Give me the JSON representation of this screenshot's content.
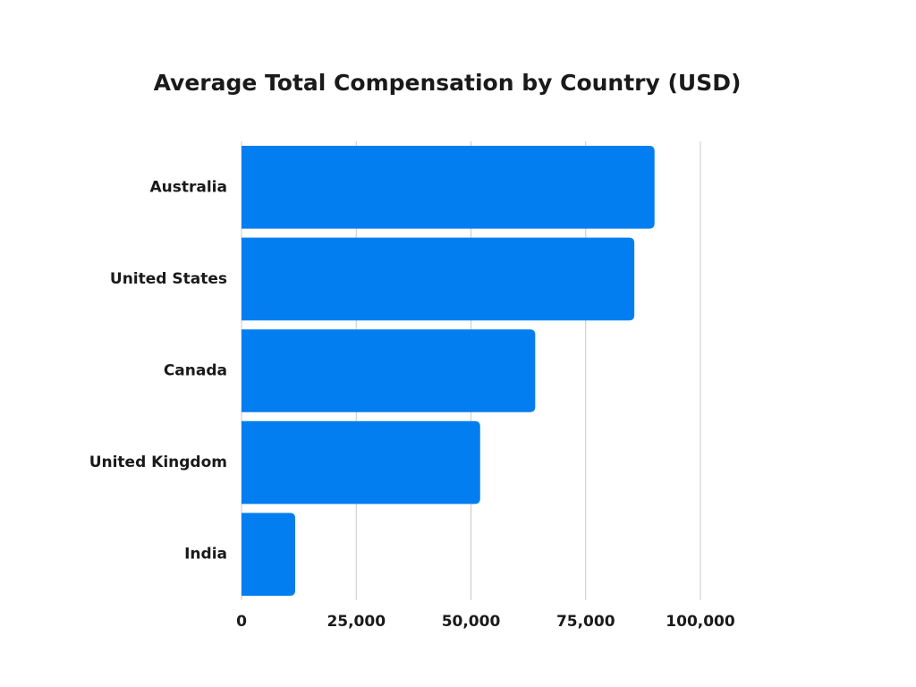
{
  "chart_data": {
    "type": "bar",
    "orientation": "horizontal",
    "title": "Average Total Compensation by Country (USD)",
    "categories": [
      "Australia",
      "United States",
      "Canada",
      "United Kingdom",
      "India"
    ],
    "values": [
      90000,
      85600,
      64000,
      52000,
      11700
    ],
    "color": "#037ef0",
    "xlim": [
      0,
      100000
    ],
    "xticks": [
      0,
      {
        "value": 25000,
        "label": "25,000"
      },
      {
        "value": 50000,
        "label": "50,000"
      },
      {
        "value": 75000,
        "label": "75,000"
      },
      {
        "value": 100000,
        "label": "100,000"
      }
    ],
    "grid": true
  }
}
